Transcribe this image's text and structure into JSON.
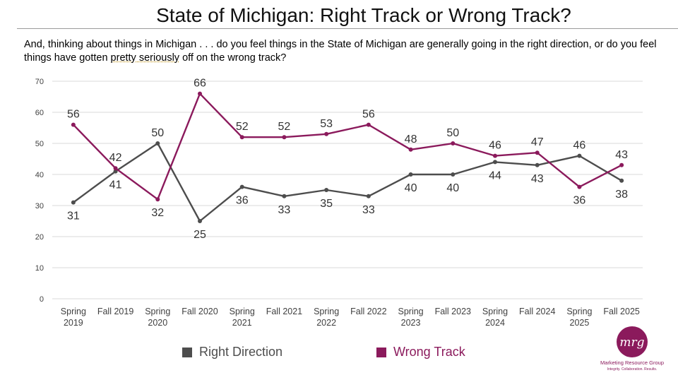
{
  "title": "State of Michigan: Right Track or Wrong Track?",
  "question": {
    "before": "And, thinking about things in Michigan . . . do you feel things in the State of Michigan are generally going in the right direction, or do you feel things have gotten ",
    "underlined": "pretty seriously",
    "after": " off on the wrong track?"
  },
  "colors": {
    "right": "#4d4d4d",
    "wrong": "#8b1a5c",
    "grid": "#d9d9d9",
    "axis_text": "#404040"
  },
  "chart_data": {
    "type": "line",
    "title": "State of Michigan: Right Track or Wrong Track?",
    "categories": [
      [
        "Spring",
        "2019"
      ],
      [
        "Fall 2019"
      ],
      [
        "Spring",
        "2020"
      ],
      [
        "Fall 2020"
      ],
      [
        "Spring",
        "2021"
      ],
      [
        "Fall 2021"
      ],
      [
        "Spring",
        "2022"
      ],
      [
        "Fall 2022"
      ],
      [
        "Spring",
        "2023"
      ],
      [
        "Fall 2023"
      ],
      [
        "Spring",
        "2024"
      ],
      [
        "Fall 2024"
      ],
      [
        "Spring",
        "2025"
      ],
      [
        "Fall 2025"
      ]
    ],
    "series": [
      {
        "name": "Right Direction",
        "values": [
          31,
          41,
          50,
          25,
          36,
          33,
          35,
          33,
          40,
          40,
          44,
          43,
          46,
          38
        ]
      },
      {
        "name": "Wrong Track",
        "values": [
          56,
          42,
          32,
          66,
          52,
          52,
          53,
          56,
          48,
          50,
          46,
          47,
          36,
          43
        ]
      }
    ],
    "ylim": [
      0,
      70
    ],
    "yticks": [
      0,
      10,
      20,
      30,
      40,
      50,
      60,
      70
    ],
    "grid": true,
    "legend": "bottom"
  },
  "legend": {
    "right_label": "Right Direction",
    "wrong_label": "Wrong Track"
  },
  "logo": {
    "mark": "mrg",
    "name": "Marketing Resource Group",
    "tagline": "Integrity. Collaboration. Results."
  }
}
